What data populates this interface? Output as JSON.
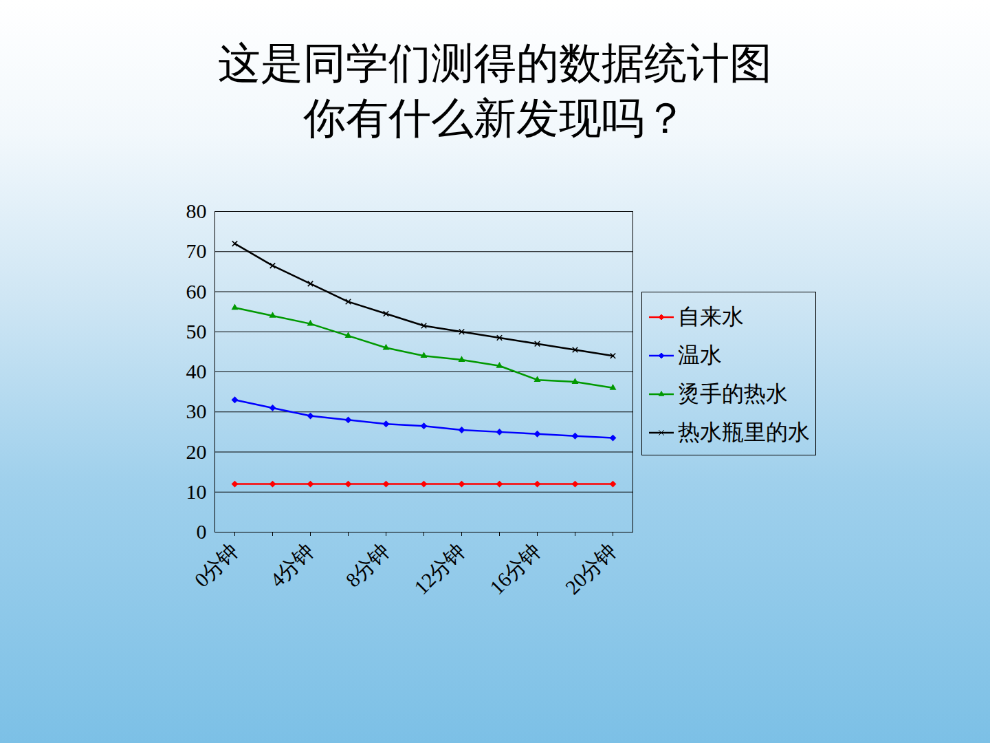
{
  "chart_data": {
    "type": "line",
    "title": "这是同学们测得的数据统计图",
    "subtitle": "你有什么新发现吗？",
    "categories": [
      "0分钟",
      null,
      "4分钟",
      null,
      "8分钟",
      null,
      "12分钟",
      null,
      "16分钟",
      null,
      "20分钟"
    ],
    "series": [
      {
        "name": "自来水",
        "color": "#ff0000",
        "marker": "diamond",
        "values": [
          12,
          12,
          12,
          12,
          12,
          12,
          12,
          12,
          12,
          12,
          12
        ]
      },
      {
        "name": "温水",
        "color": "#0000ff",
        "marker": "diamond",
        "values": [
          33,
          31,
          29,
          28,
          27,
          26.5,
          25.5,
          25,
          24.5,
          24,
          23.5
        ]
      },
      {
        "name": "烫手的热水",
        "color": "#009900",
        "marker": "triangle",
        "values": [
          56,
          54,
          52,
          49,
          46,
          44,
          43,
          41.5,
          38,
          37.5,
          36
        ]
      },
      {
        "name": "热水瓶里的水",
        "color": "#000000",
        "marker": "times",
        "values": [
          72,
          66.5,
          62,
          57.5,
          54.5,
          51.5,
          50,
          48.5,
          47,
          45.5,
          44
        ]
      }
    ],
    "ylim": [
      0,
      80
    ],
    "yticks": [
      0,
      10,
      20,
      30,
      40,
      50,
      60,
      70,
      80
    ],
    "grid": true,
    "legend": "right"
  }
}
